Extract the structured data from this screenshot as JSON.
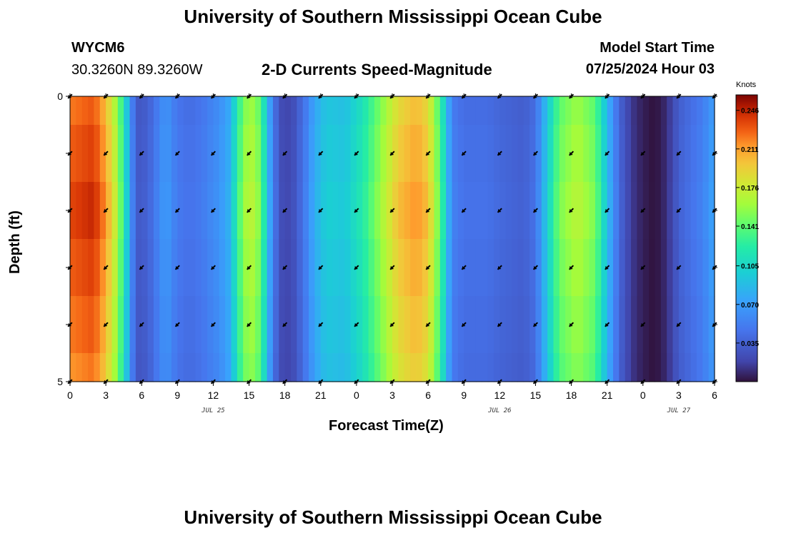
{
  "header": {
    "title": "University of Southern Mississippi Ocean Cube",
    "station": "WYCM6",
    "coords": "30.3260N  89.3260W",
    "plot_title": "2-D Currents Speed-Magnitude",
    "model_label": "Model Start Time",
    "model_time": "07/25/2024 Hour 03"
  },
  "footer": {
    "title": "University of Southern Mississippi Ocean Cube"
  },
  "chart_data": {
    "type": "heatmap",
    "title": "2-D Currents Speed-Magnitude",
    "xlabel": "Forecast Time(Z)",
    "ylabel": "Depth (ft)",
    "x_tick_labels": [
      "0",
      "3",
      "6",
      "9",
      "12",
      "15",
      "18",
      "21",
      "0",
      "3",
      "6",
      "9",
      "12",
      "15",
      "18",
      "21",
      "0",
      "3",
      "6"
    ],
    "date_labels": [
      {
        "label": "JUL 25",
        "at_hour": 12
      },
      {
        "label": "JUL 26",
        "at_hour": 36
      },
      {
        "label": "JUL 27",
        "at_hour": 51
      }
    ],
    "x_range_hours": [
      0,
      54
    ],
    "y_tick_labels": [
      "0",
      "5"
    ],
    "ylim": [
      0,
      5
    ],
    "depth_rows": [
      0,
      1,
      2,
      3,
      4,
      5
    ],
    "colorbar": {
      "unit": "Knots",
      "min": 0.0,
      "max": 0.26,
      "tick_labels": [
        "0.246",
        "0.211",
        "0.176",
        "0.141",
        "0.105",
        "0.070",
        "0.035"
      ],
      "tick_values": [
        0.246,
        0.211,
        0.176,
        0.141,
        0.105,
        0.07,
        0.035
      ]
    },
    "speed_profile_knots": [
      [
        0,
        0.235
      ],
      [
        2,
        0.245
      ],
      [
        3,
        0.215
      ],
      [
        4,
        0.165
      ],
      [
        4.7,
        0.105
      ],
      [
        5.5,
        0.03
      ],
      [
        6.5,
        0.035
      ],
      [
        8,
        0.07
      ],
      [
        9,
        0.05
      ],
      [
        10,
        0.045
      ],
      [
        11,
        0.05
      ],
      [
        12.5,
        0.065
      ],
      [
        13.5,
        0.085
      ],
      [
        14,
        0.13
      ],
      [
        15,
        0.175
      ],
      [
        16,
        0.15
      ],
      [
        16.5,
        0.09
      ],
      [
        17.5,
        0.025
      ],
      [
        18.5,
        0.02
      ],
      [
        19.5,
        0.045
      ],
      [
        20.5,
        0.08
      ],
      [
        21.5,
        0.1
      ],
      [
        23,
        0.095
      ],
      [
        24.5,
        0.12
      ],
      [
        26,
        0.16
      ],
      [
        27.5,
        0.2
      ],
      [
        29,
        0.215
      ],
      [
        30,
        0.2
      ],
      [
        31,
        0.14
      ],
      [
        32,
        0.055
      ],
      [
        33,
        0.045
      ],
      [
        35,
        0.045
      ],
      [
        36,
        0.04
      ],
      [
        38,
        0.035
      ],
      [
        39,
        0.045
      ],
      [
        40,
        0.1
      ],
      [
        41,
        0.15
      ],
      [
        42.5,
        0.17
      ],
      [
        44,
        0.15
      ],
      [
        45,
        0.09
      ],
      [
        46,
        0.04
      ],
      [
        47,
        0.015
      ],
      [
        48,
        0.005
      ],
      [
        49,
        0.0
      ],
      [
        50,
        0.01
      ],
      [
        51,
        0.035
      ],
      [
        52,
        0.045
      ],
      [
        53,
        0.055
      ],
      [
        54,
        0.075
      ]
    ],
    "arrow_hours": [
      0,
      3,
      6,
      9,
      12,
      15,
      18,
      21,
      24,
      27,
      30,
      33,
      36,
      39,
      42,
      45,
      48,
      51,
      54
    ],
    "arrow_directions_deg": [
      [
        135,
        135,
        135,
        135,
        135,
        135,
        135,
        135,
        135,
        135,
        135,
        135,
        135,
        135,
        135,
        135,
        135,
        135,
        135
      ],
      [
        135,
        135,
        135,
        135,
        135,
        135,
        135,
        135,
        135,
        135,
        135,
        135,
        135,
        135,
        135,
        135,
        135,
        135,
        135
      ],
      [
        135,
        135,
        135,
        135,
        135,
        135,
        135,
        135,
        135,
        135,
        135,
        135,
        135,
        135,
        135,
        135,
        135,
        135,
        135
      ],
      [
        135,
        135,
        135,
        135,
        135,
        135,
        135,
        135,
        135,
        135,
        135,
        135,
        135,
        135,
        135,
        135,
        135,
        135,
        135
      ],
      [
        135,
        135,
        135,
        135,
        135,
        135,
        135,
        135,
        135,
        135,
        135,
        135,
        135,
        135,
        135,
        135,
        135,
        135,
        135
      ],
      [
        135,
        135,
        135,
        135,
        135,
        135,
        135,
        135,
        135,
        135,
        135,
        135,
        135,
        135,
        135,
        135,
        135,
        135,
        135
      ]
    ]
  }
}
